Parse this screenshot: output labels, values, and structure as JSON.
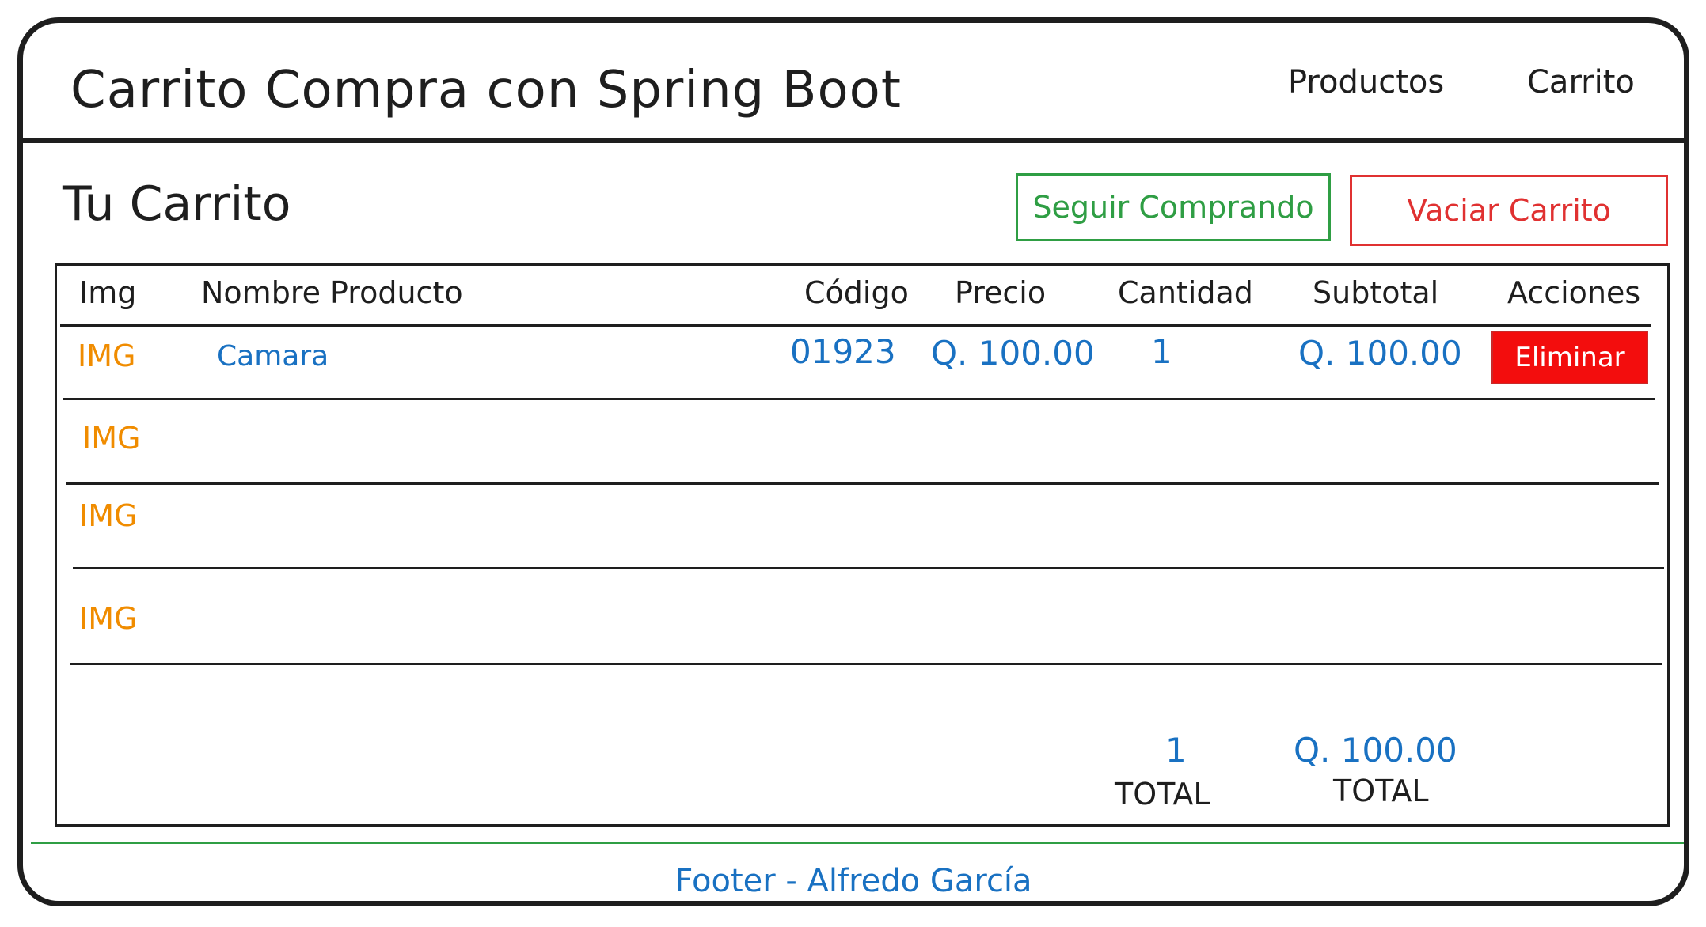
{
  "header": {
    "title": "Carrito Compra con Spring Boot",
    "nav": {
      "productos": "Productos",
      "carrito": "Carrito"
    }
  },
  "page": {
    "heading": "Tu Carrito",
    "seguir_label": "Seguir Comprando",
    "vaciar_label": "Vaciar Carrito"
  },
  "table": {
    "columns": [
      "Img",
      "Nombre Producto",
      "Código",
      "Precio",
      "Cantidad",
      "Subtotal",
      "Acciones"
    ],
    "rows": [
      {
        "img": "IMG",
        "nombre": "Camara",
        "codigo": "01923",
        "precio": "Q. 100.00",
        "cantidad": "1",
        "subtotal": "Q. 100.00",
        "accion": "Eliminar"
      },
      {
        "img": "IMG"
      },
      {
        "img": "IMG"
      },
      {
        "img": "IMG"
      }
    ],
    "totals": {
      "cantidad": "1",
      "cantidad_label": "TOTAL",
      "subtotal": "Q. 100.00",
      "subtotal_label": "TOTAL"
    }
  },
  "footer": {
    "text": "Footer - Alfredo García"
  },
  "colors": {
    "ink": "#1e1e1e",
    "green": "#2f9e44",
    "red": "#e03131",
    "blue": "#1971c2",
    "orange": "#f08c00",
    "delete_fill": "#f30d0d"
  }
}
